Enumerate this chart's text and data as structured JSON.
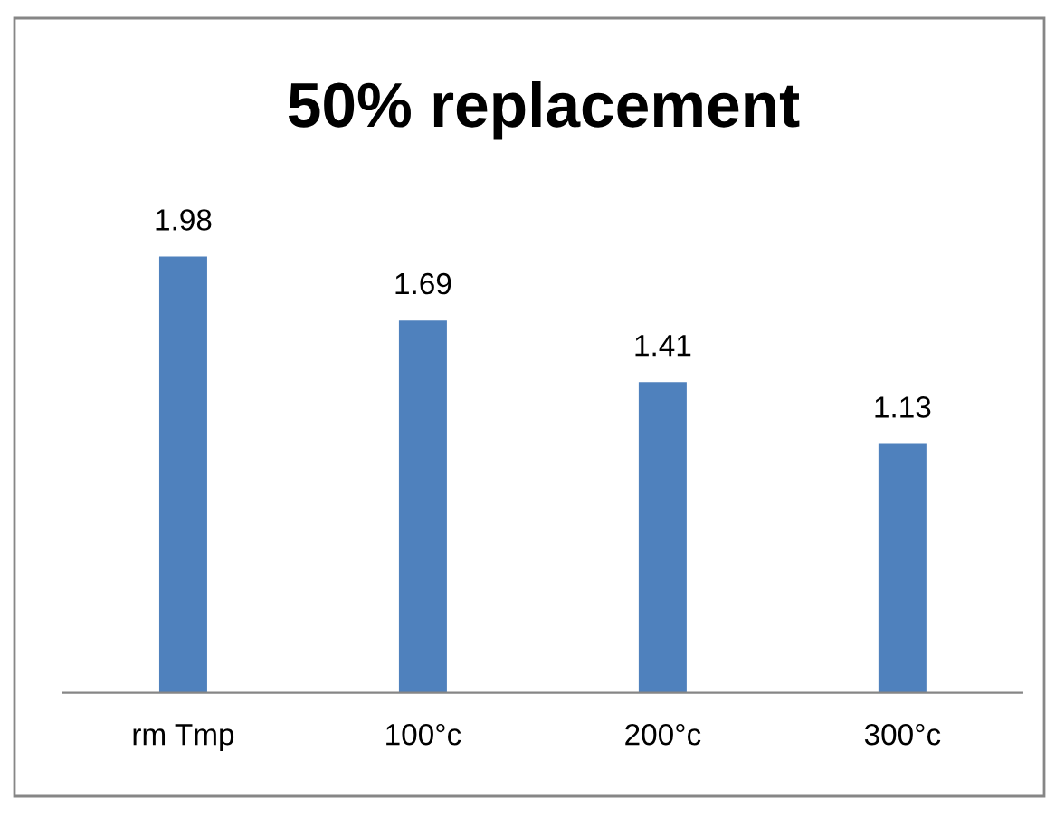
{
  "chart_data": {
    "type": "bar",
    "title": "50% replacement",
    "categories": [
      "rm Tmp",
      "100°c",
      "200°c",
      "300°c"
    ],
    "values": [
      1.98,
      1.69,
      1.41,
      1.13
    ],
    "color": "#4f81bd",
    "data_labels": true,
    "grid": false,
    "legend": false
  }
}
